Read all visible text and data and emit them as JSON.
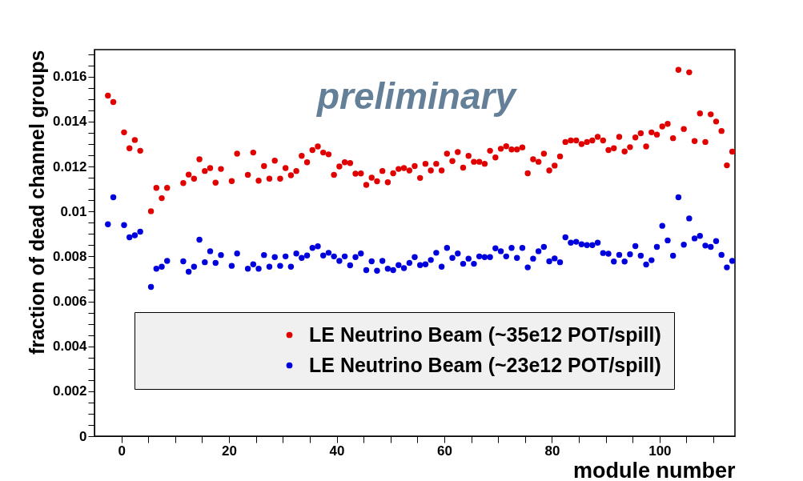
{
  "chart_data": {
    "type": "scatter",
    "xlabel": "module number",
    "ylabel": "fraction of dead channel groups",
    "annotations": [
      "preliminary"
    ],
    "legend": "bottom",
    "marker": "circle",
    "xlim": [
      -5,
      114
    ],
    "ylim": [
      0,
      0.0172
    ],
    "xticks": [
      0,
      {
        "value": 5,
        "label": null
      },
      {
        "value": 10,
        "label": null
      },
      {
        "value": 15,
        "label": null
      },
      20,
      {
        "value": 25,
        "label": null
      },
      {
        "value": 30,
        "label": null
      },
      {
        "value": 35,
        "label": null
      },
      40,
      {
        "value": 45,
        "label": null
      },
      {
        "value": 50,
        "label": null
      },
      {
        "value": 55,
        "label": null
      },
      60,
      {
        "value": 65,
        "label": null
      },
      {
        "value": 70,
        "label": null
      },
      {
        "value": 75,
        "label": null
      },
      80,
      {
        "value": 85,
        "label": null
      },
      {
        "value": 90,
        "label": null
      },
      {
        "value": 95,
        "label": null
      },
      100,
      {
        "value": 105,
        "label": null
      },
      {
        "value": 110,
        "label": null
      }
    ],
    "yticks": [
      0,
      {
        "value": 0.0005,
        "label": null
      },
      {
        "value": 0.001,
        "label": null
      },
      {
        "value": 0.0015,
        "label": null
      },
      0.002,
      {
        "value": 0.0025,
        "label": null
      },
      {
        "value": 0.003,
        "label": null
      },
      {
        "value": 0.0035,
        "label": null
      },
      0.004,
      {
        "value": 0.0045,
        "label": null
      },
      {
        "value": 0.005,
        "label": null
      },
      {
        "value": 0.0055,
        "label": null
      },
      0.006,
      {
        "value": 0.0065,
        "label": null
      },
      {
        "value": 0.007,
        "label": null
      },
      {
        "value": 0.0075,
        "label": null
      },
      0.008,
      {
        "value": 0.0085,
        "label": null
      },
      {
        "value": 0.009,
        "label": null
      },
      {
        "value": 0.0095,
        "label": null
      },
      0.01,
      {
        "value": 0.0105,
        "label": null
      },
      {
        "value": 0.011,
        "label": null
      },
      {
        "value": 0.0115,
        "label": null
      },
      0.012,
      {
        "value": 0.0125,
        "label": null
      },
      {
        "value": 0.013,
        "label": null
      },
      {
        "value": 0.0135,
        "label": null
      },
      0.014,
      {
        "value": 0.0145,
        "label": null
      },
      {
        "value": 0.015,
        "label": null
      },
      {
        "value": 0.0155,
        "label": null
      },
      0.016,
      {
        "value": 0.0165,
        "label": null
      },
      {
        "value": 0.017,
        "label": null
      }
    ],
    "x": [
      -2.5,
      -1.5,
      0.5,
      1.5,
      2.5,
      3.5,
      5.5,
      6.5,
      7.5,
      8.5,
      11.5,
      12.5,
      13.5,
      14.5,
      15.5,
      16.5,
      17.5,
      18.5,
      20.5,
      21.5,
      23.5,
      24.5,
      25.5,
      26.5,
      27.5,
      28.5,
      29.5,
      30.5,
      31.5,
      32.5,
      33.5,
      34.5,
      35.5,
      36.5,
      37.5,
      38.5,
      39.5,
      40.5,
      41.5,
      42.5,
      43.5,
      44.5,
      45.5,
      46.5,
      47.5,
      48.5,
      49.5,
      50.5,
      51.5,
      52.5,
      53.5,
      54.5,
      55.5,
      56.5,
      57.5,
      58.5,
      59.5,
      60.5,
      61.5,
      62.5,
      63.5,
      64.5,
      65.5,
      66.5,
      67.5,
      68.5,
      69.5,
      70.5,
      71.5,
      72.5,
      73.5,
      74.5,
      75.5,
      76.5,
      77.5,
      78.5,
      79.5,
      80.5,
      81.5,
      82.5,
      83.5,
      84.5,
      85.5,
      86.5,
      87.5,
      88.5,
      89.5,
      90.5,
      91.5,
      92.5,
      93.5,
      94.5,
      95.5,
      96.5,
      97.5,
      98.5,
      99.5,
      100.5,
      101.5,
      102.5,
      103.5,
      104.5,
      105.5,
      106.5,
      107.5,
      108.5,
      109.5,
      110.5,
      111.5,
      112.5,
      113.5
    ],
    "series": [
      {
        "name": "LE Neutrino Beam (~35e12 POT/spill)",
        "color": "#e00000",
        "values": [
          0.01515,
          0.01487,
          0.01352,
          0.01281,
          0.01318,
          0.0127,
          0.01001,
          0.01105,
          0.01059,
          0.01105,
          0.01126,
          0.01164,
          0.01146,
          0.01232,
          0.0118,
          0.01193,
          0.01128,
          0.01189,
          0.01135,
          0.01257,
          0.01163,
          0.01262,
          0.01137,
          0.01202,
          0.01146,
          0.01226,
          0.01146,
          0.01193,
          0.01161,
          0.0118,
          0.01247,
          0.01219,
          0.01273,
          0.01289,
          0.01262,
          0.01254,
          0.01163,
          0.012,
          0.01219,
          0.01215,
          0.01168,
          0.01169,
          0.01118,
          0.0115,
          0.01134,
          0.0118,
          0.0113,
          0.0117,
          0.01189,
          0.01193,
          0.01182,
          0.01202,
          0.01149,
          0.01212,
          0.01182,
          0.01212,
          0.01182,
          0.01257,
          0.01224,
          0.01264,
          0.01195,
          0.01247,
          0.01221,
          0.01221,
          0.01212,
          0.0127,
          0.0124,
          0.01279,
          0.0129,
          0.01276,
          0.01276,
          0.01285,
          0.0117,
          0.01232,
          0.01221,
          0.01257,
          0.01182,
          0.01204,
          0.01245,
          0.01309,
          0.01316,
          0.01316,
          0.013,
          0.01309,
          0.01316,
          0.01332,
          0.01316,
          0.01273,
          0.01281,
          0.01332,
          0.01267,
          0.01286,
          0.01329,
          0.01348,
          0.01289,
          0.01352,
          0.01342,
          0.01378,
          0.0139,
          0.01326,
          0.0163,
          0.01367,
          0.01619,
          0.01313,
          0.01436,
          0.01309,
          0.01432,
          0.014,
          0.01358,
          0.01205,
          0.01266
        ]
      },
      {
        "name": "LE Neutrino Beam (~23e12 POT/spill)",
        "color": "#0000dd",
        "values": [
          0.00943,
          0.01063,
          0.00939,
          0.00885,
          0.00894,
          0.0091,
          0.00664,
          0.00745,
          0.00754,
          0.0078,
          0.00778,
          0.00732,
          0.00754,
          0.00874,
          0.00774,
          0.00823,
          0.00771,
          0.00806,
          0.00758,
          0.00813,
          0.00745,
          0.00765,
          0.00745,
          0.00806,
          0.00754,
          0.00797,
          0.00758,
          0.008,
          0.00754,
          0.00813,
          0.00793,
          0.00804,
          0.00838,
          0.00845,
          0.00804,
          0.00816,
          0.008,
          0.0078,
          0.008,
          0.0076,
          0.00797,
          0.00813,
          0.00739,
          0.00778,
          0.00736,
          0.0078,
          0.00745,
          0.00739,
          0.00761,
          0.00748,
          0.00771,
          0.00797,
          0.00761,
          0.00765,
          0.00784,
          0.00816,
          0.00754,
          0.00838,
          0.00793,
          0.00813,
          0.00767,
          0.0079,
          0.00767,
          0.008,
          0.00797,
          0.00797,
          0.00836,
          0.00823,
          0.008,
          0.00838,
          0.00793,
          0.00838,
          0.00751,
          0.0079,
          0.00823,
          0.00842,
          0.00778,
          0.00791,
          0.00774,
          0.00885,
          0.00861,
          0.00865,
          0.00854,
          0.0085,
          0.0085,
          0.00861,
          0.00815,
          0.00812,
          0.00777,
          0.00807,
          0.00777,
          0.00809,
          0.00846,
          0.00803,
          0.00764,
          0.00783,
          0.00842,
          0.00936,
          0.00871,
          0.00803,
          0.01063,
          0.00852,
          0.00969,
          0.0088,
          0.00891,
          0.00848,
          0.00842,
          0.00868,
          0.00807,
          0.00751,
          0.0078
        ]
      }
    ]
  }
}
